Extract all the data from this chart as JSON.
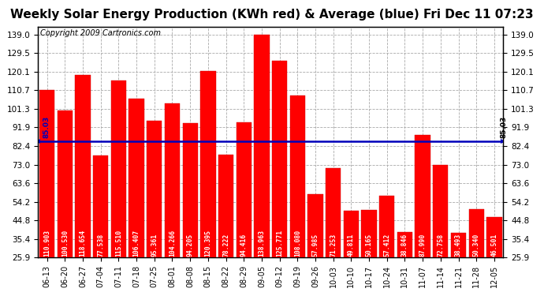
{
  "title": "Weekly Solar Energy Production (KWh red) & Average (blue) Fri Dec 11 07:23",
  "copyright": "Copyright 2009 Cartronics.com",
  "categories": [
    "06-13",
    "06-20",
    "06-27",
    "07-04",
    "07-11",
    "07-18",
    "07-25",
    "08-01",
    "08-08",
    "08-15",
    "08-22",
    "08-29",
    "09-05",
    "09-12",
    "09-19",
    "09-26",
    "10-03",
    "10-10",
    "10-17",
    "10-24",
    "10-31",
    "11-07",
    "11-14",
    "11-21",
    "11-28",
    "12-05"
  ],
  "values": [
    110.903,
    100.53,
    118.654,
    77.538,
    115.51,
    106.407,
    95.361,
    104.266,
    94.205,
    120.395,
    78.222,
    94.416,
    138.963,
    125.771,
    108.08,
    57.985,
    71.253,
    49.811,
    50.165,
    57.412,
    38.846,
    87.99,
    72.758,
    38.493,
    50.34,
    46.501
  ],
  "average": 85.03,
  "bar_color": "#ff0000",
  "avg_color": "#0000bb",
  "bar_edge_color": "#cc0000",
  "background_color": "#ffffff",
  "plot_bg_color": "#ffffff",
  "grid_color": "#aaaaaa",
  "title_fontsize": 11,
  "copyright_fontsize": 7,
  "bar_label_fontsize": 5.8,
  "tick_fontsize": 7.5,
  "ylim_min": 25.9,
  "ylim_max": 143.0,
  "yticks": [
    25.9,
    35.4,
    44.8,
    54.2,
    63.6,
    73.0,
    82.4,
    91.9,
    101.3,
    110.7,
    120.1,
    129.5,
    139.0
  ]
}
